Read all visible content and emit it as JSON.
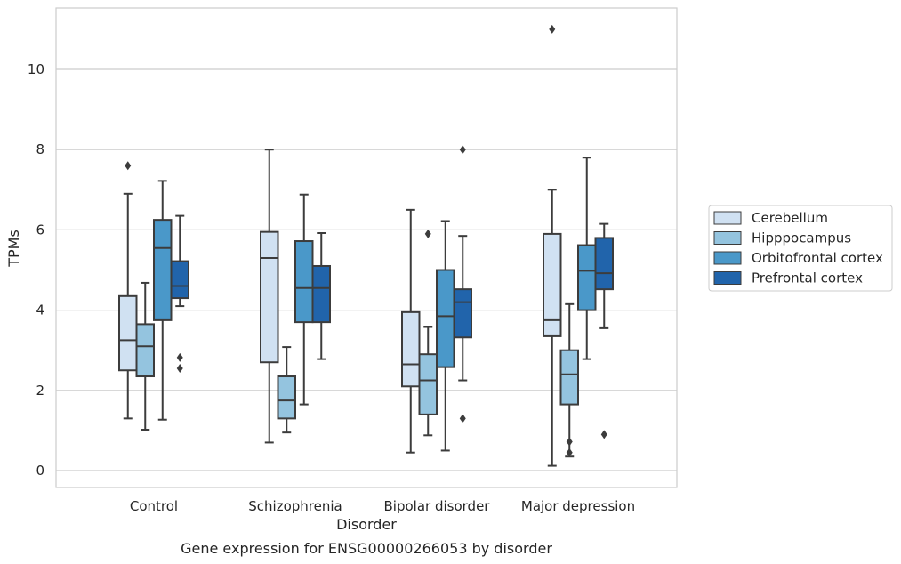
{
  "chart_data": {
    "type": "box",
    "caption": "Gene expression for ENSG00000266053 by disorder",
    "xlabel": "Disorder",
    "ylabel": "TPMs",
    "categories": [
      "Control",
      "Schizophrenia",
      "Bipolar disorder",
      "Major depression"
    ],
    "ylim": [
      -0.4,
      11.5
    ],
    "yticks": [
      0,
      2,
      4,
      6,
      8,
      10
    ],
    "grid": true,
    "legend_position": "right",
    "series": [
      {
        "name": "Cerebellum",
        "color": "#d0e1f2",
        "boxes": [
          {
            "min": 1.3,
            "q1": 2.5,
            "median": 3.25,
            "q3": 4.35,
            "max": 6.9,
            "outliers": [
              7.6
            ]
          },
          {
            "min": 0.7,
            "q1": 2.7,
            "median": 5.3,
            "q3": 5.95,
            "max": 8.0,
            "outliers": []
          },
          {
            "min": 0.45,
            "q1": 2.1,
            "median": 2.65,
            "q3": 3.95,
            "max": 6.5,
            "outliers": []
          },
          {
            "min": 0.12,
            "q1": 3.35,
            "median": 3.75,
            "q3": 5.9,
            "max": 7.0,
            "outliers": [
              11.0
            ]
          }
        ]
      },
      {
        "name": "Hipppocampus",
        "color": "#94c4df",
        "boxes": [
          {
            "min": 1.02,
            "q1": 2.35,
            "median": 3.1,
            "q3": 3.65,
            "max": 4.68,
            "outliers": []
          },
          {
            "min": 0.95,
            "q1": 1.3,
            "median": 1.75,
            "q3": 2.35,
            "max": 3.08,
            "outliers": []
          },
          {
            "min": 0.88,
            "q1": 1.4,
            "median": 2.25,
            "q3": 2.9,
            "max": 3.58,
            "outliers": [
              5.9
            ]
          },
          {
            "min": 0.35,
            "q1": 1.65,
            "median": 2.4,
            "q3": 3.0,
            "max": 4.15,
            "outliers": [
              0.45,
              0.72
            ]
          }
        ]
      },
      {
        "name": "Orbitofrontal cortex",
        "color": "#4a98c9",
        "boxes": [
          {
            "min": 1.27,
            "q1": 3.75,
            "median": 5.55,
            "q3": 6.25,
            "max": 7.22,
            "outliers": []
          },
          {
            "min": 1.65,
            "q1": 3.7,
            "median": 4.55,
            "q3": 5.72,
            "max": 6.88,
            "outliers": []
          },
          {
            "min": 0.5,
            "q1": 2.58,
            "median": 3.85,
            "q3": 5.0,
            "max": 6.22,
            "outliers": []
          },
          {
            "min": 2.78,
            "q1": 4.0,
            "median": 4.98,
            "q3": 5.62,
            "max": 7.8,
            "outliers": []
          }
        ]
      },
      {
        "name": "Prefrontal cortex",
        "color": "#2164ab",
        "boxes": [
          {
            "min": 4.1,
            "q1": 4.3,
            "median": 4.6,
            "q3": 5.22,
            "max": 6.35,
            "outliers": [
              2.55,
              2.82
            ]
          },
          {
            "min": 2.78,
            "q1": 3.7,
            "median": 4.55,
            "q3": 5.1,
            "max": 5.92,
            "outliers": []
          },
          {
            "min": 2.25,
            "q1": 3.32,
            "median": 4.2,
            "q3": 4.52,
            "max": 5.85,
            "outliers": [
              1.3,
              8.0
            ]
          },
          {
            "min": 3.55,
            "q1": 4.52,
            "median": 4.92,
            "q3": 5.8,
            "max": 6.15,
            "outliers": [
              0.9
            ]
          }
        ]
      }
    ]
  }
}
